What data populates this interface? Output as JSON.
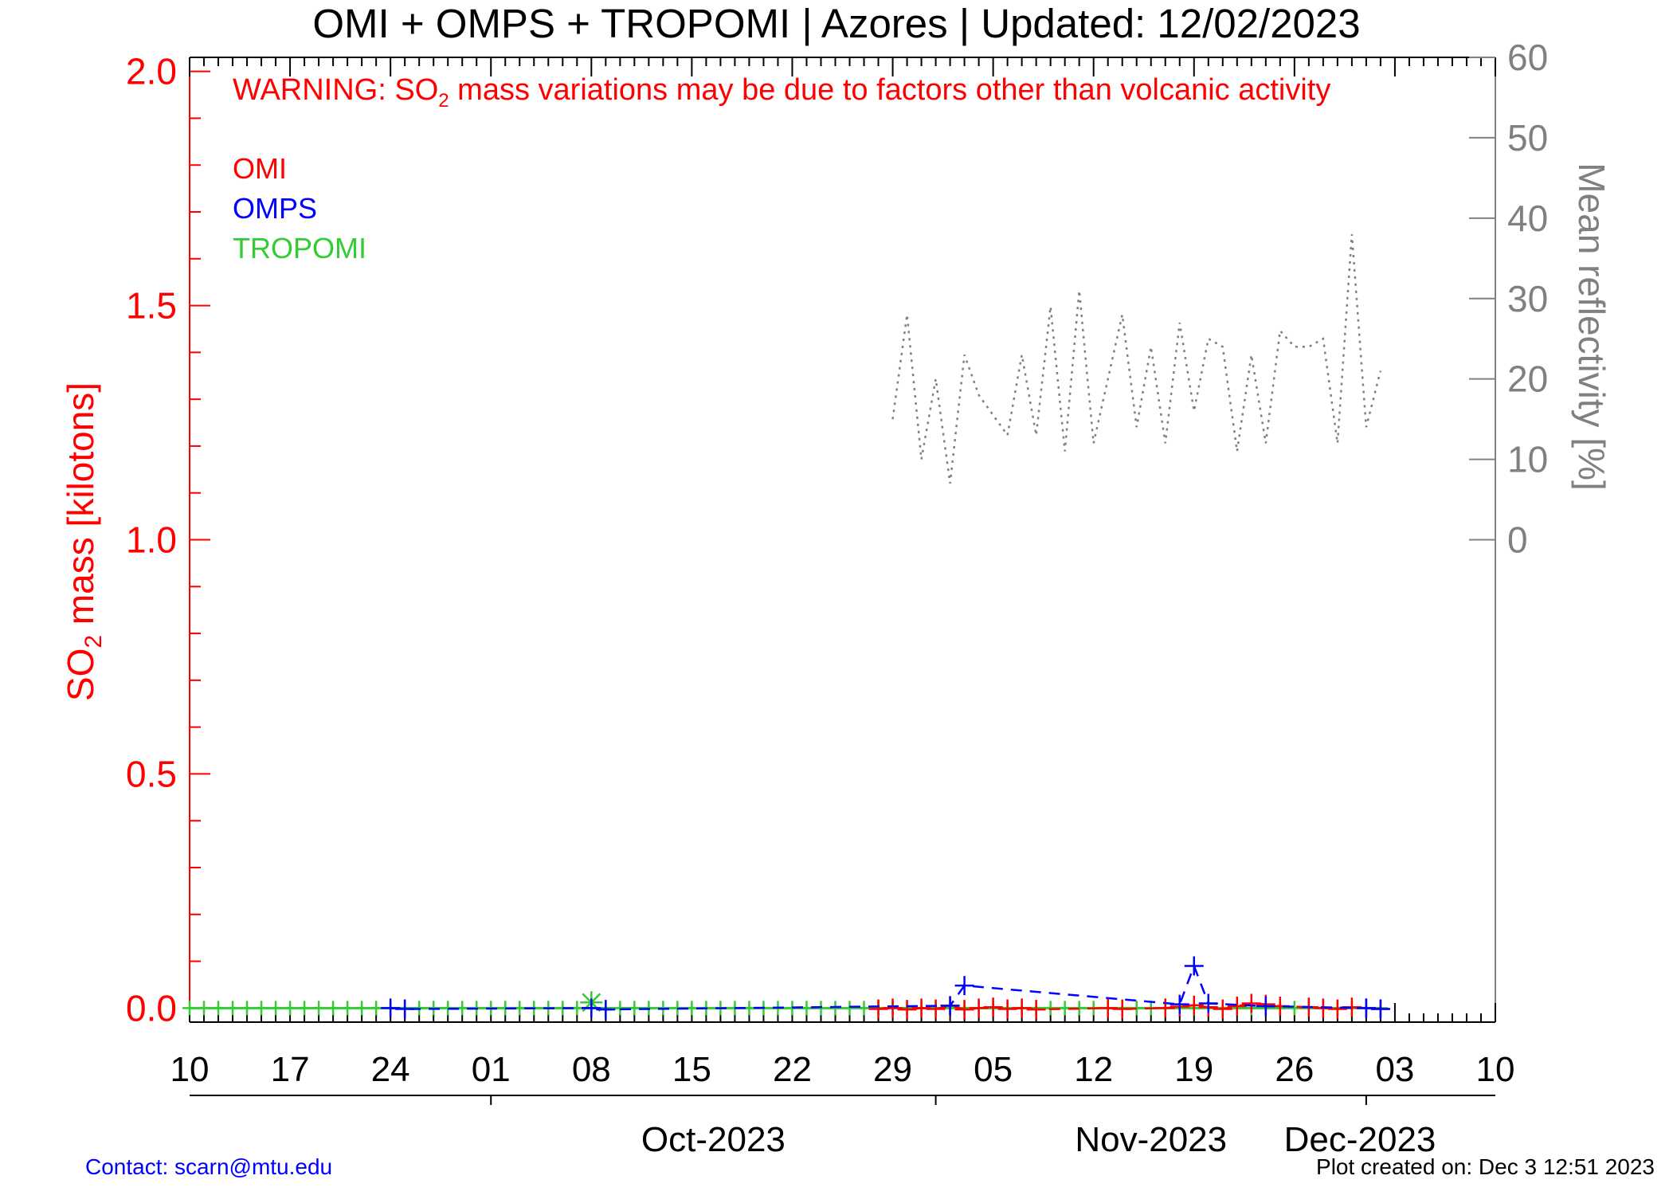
{
  "title": "OMI + OMPS + TROPOMI | Azores | Updated: 12/02/2023",
  "warning": {
    "prefix": "WARNING: SO",
    "sub": "2",
    "rest": " mass variations may be due to factors other than volcanic activity"
  },
  "legend": [
    {
      "label": "OMI",
      "color": "#ff0000"
    },
    {
      "label": "OMPS",
      "color": "#0000ff"
    },
    {
      "label": "TROPOMI",
      "color": "#33cc33"
    }
  ],
  "footer": {
    "contact": "Contact: scarn@mtu.edu",
    "created": "Plot created on: Dec  3 12:51 2023"
  },
  "colors": {
    "left_axis": "#ff0000",
    "right_axis": "#808080",
    "omi": "#ff0000",
    "omps": "#0000ff",
    "tropomi": "#33cc33",
    "reflectivity": "#808080"
  },
  "chart_data": {
    "type": "line",
    "x_axis": {
      "range": [
        "2023-09-10",
        "2023-12-10"
      ],
      "tick_labels": [
        "10",
        "17",
        "24",
        "01",
        "08",
        "15",
        "22",
        "29",
        "05",
        "12",
        "19",
        "26",
        "03",
        "10"
      ],
      "month_labels": [
        "Oct-2023",
        "Nov-2023",
        "Dec-2023"
      ]
    },
    "y_left": {
      "label_prefix": "SO",
      "label_sub": "2",
      "label_rest": " mass [kilotons]",
      "range": [
        -0.03,
        2.03
      ],
      "tick_labels": [
        "0.0",
        "0.5",
        "1.0",
        "1.5",
        "2.0"
      ]
    },
    "y_right": {
      "label": "Mean reflectivity [%]",
      "range": [
        -60,
        60
      ],
      "tick_labels": [
        "0",
        "10",
        "20",
        "30",
        "40",
        "50",
        "60"
      ]
    },
    "series": [
      {
        "name": "OMI",
        "axis": "left",
        "marker": "plus",
        "x": [
          "2023-10-28",
          "2023-10-29",
          "2023-10-30",
          "2023-10-31",
          "2023-11-01",
          "2023-11-02",
          "2023-11-03",
          "2023-11-04",
          "2023-11-05",
          "2023-11-06",
          "2023-11-07",
          "2023-11-08",
          "2023-11-13",
          "2023-11-14",
          "2023-11-17",
          "2023-11-18",
          "2023-11-19",
          "2023-11-20",
          "2023-11-21",
          "2023-11-22",
          "2023-11-23",
          "2023-11-24",
          "2023-11-25",
          "2023-11-27",
          "2023-11-28",
          "2023-11-29",
          "2023-11-30",
          "2023-12-01",
          "2023-12-02"
        ],
        "y": [
          -0.002,
          0.0,
          -0.003,
          0.0,
          -0.002,
          0.005,
          -0.003,
          0.0,
          0.002,
          -0.002,
          0.0,
          -0.003,
          0.0,
          -0.002,
          0.0,
          0.003,
          0.006,
          0.002,
          -0.002,
          0.004,
          0.01,
          0.008,
          0.004,
          0.002,
          0.0,
          -0.002,
          0.002,
          0.0,
          -0.002
        ]
      },
      {
        "name": "OMPS",
        "axis": "left",
        "marker": "plus",
        "x": [
          "2023-09-24",
          "2023-09-25",
          "2023-10-08",
          "2023-10-09",
          "2023-11-02",
          "2023-11-03",
          "2023-11-18",
          "2023-11-19",
          "2023-11-20",
          "2023-11-24",
          "2023-12-01",
          "2023-12-02"
        ],
        "y": [
          0.0,
          -0.002,
          0.0,
          -0.003,
          0.005,
          0.048,
          0.008,
          0.09,
          0.01,
          0.004,
          0.0,
          -0.002
        ]
      },
      {
        "name": "TROPOMI",
        "axis": "left",
        "marker": "plus",
        "x_start": "2023-09-10",
        "x_end": "2023-12-02",
        "y": 0.0,
        "peaks": [
          {
            "x": "2023-10-08",
            "y": 0.012
          }
        ]
      },
      {
        "name": "Mean reflectivity",
        "axis": "right",
        "style": "dotted",
        "x": [
          "2023-10-29",
          "2023-10-30",
          "2023-10-31",
          "2023-11-01",
          "2023-11-02",
          "2023-11-03",
          "2023-11-04",
          "2023-11-06",
          "2023-11-07",
          "2023-11-08",
          "2023-11-09",
          "2023-11-10",
          "2023-11-11",
          "2023-11-12",
          "2023-11-13",
          "2023-11-14",
          "2023-11-15",
          "2023-11-16",
          "2023-11-17",
          "2023-11-18",
          "2023-11-19",
          "2023-11-20",
          "2023-11-21",
          "2023-11-22",
          "2023-11-23",
          "2023-11-24",
          "2023-11-25",
          "2023-11-26",
          "2023-11-27",
          "2023-11-28",
          "2023-11-29",
          "2023-11-30",
          "2023-12-01",
          "2023-12-02"
        ],
        "y": [
          15,
          28,
          10,
          20,
          7,
          23,
          18,
          13,
          23,
          13,
          29,
          11,
          31,
          12,
          20,
          28,
          14,
          24,
          12,
          27,
          16,
          25,
          24,
          11,
          23,
          12,
          26,
          24,
          24,
          25,
          12,
          38,
          14,
          21
        ]
      }
    ]
  }
}
